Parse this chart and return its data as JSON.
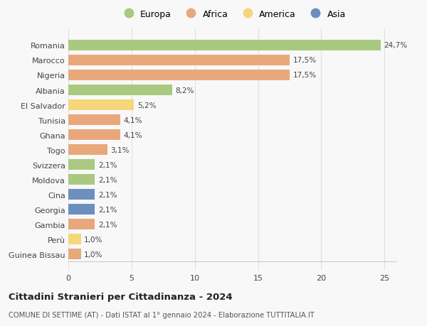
{
  "categories": [
    "Romania",
    "Marocco",
    "Nigeria",
    "Albania",
    "El Salvador",
    "Tunisia",
    "Ghana",
    "Togo",
    "Svizzera",
    "Moldova",
    "Cina",
    "Georgia",
    "Gambia",
    "Perù",
    "Guinea Bissau"
  ],
  "values": [
    24.7,
    17.5,
    17.5,
    8.2,
    5.2,
    4.1,
    4.1,
    3.1,
    2.1,
    2.1,
    2.1,
    2.1,
    2.1,
    1.0,
    1.0
  ],
  "labels": [
    "24,7%",
    "17,5%",
    "17,5%",
    "8,2%",
    "5,2%",
    "4,1%",
    "4,1%",
    "3,1%",
    "2,1%",
    "2,1%",
    "2,1%",
    "2,1%",
    "2,1%",
    "1,0%",
    "1,0%"
  ],
  "colors": [
    "#a8c97f",
    "#e8a87c",
    "#e8a87c",
    "#a8c97f",
    "#f5d77a",
    "#e8a87c",
    "#e8a87c",
    "#e8a87c",
    "#a8c97f",
    "#a8c97f",
    "#6b8fbf",
    "#6b8fbf",
    "#e8a87c",
    "#f5d77a",
    "#e8a87c"
  ],
  "legend_labels": [
    "Europa",
    "Africa",
    "America",
    "Asia"
  ],
  "legend_colors": [
    "#a8c97f",
    "#e8a87c",
    "#f5d77a",
    "#6b8fbf"
  ],
  "title": "Cittadini Stranieri per Cittadinanza - 2024",
  "subtitle": "COMUNE DI SETTIME (AT) - Dati ISTAT al 1° gennaio 2024 - Elaborazione TUTTITALIA.IT",
  "xlim": [
    0,
    26
  ],
  "xticks": [
    0,
    5,
    10,
    15,
    20,
    25
  ],
  "background_color": "#f8f8f8",
  "grid_color": "#e0e0e0",
  "bar_height": 0.72
}
